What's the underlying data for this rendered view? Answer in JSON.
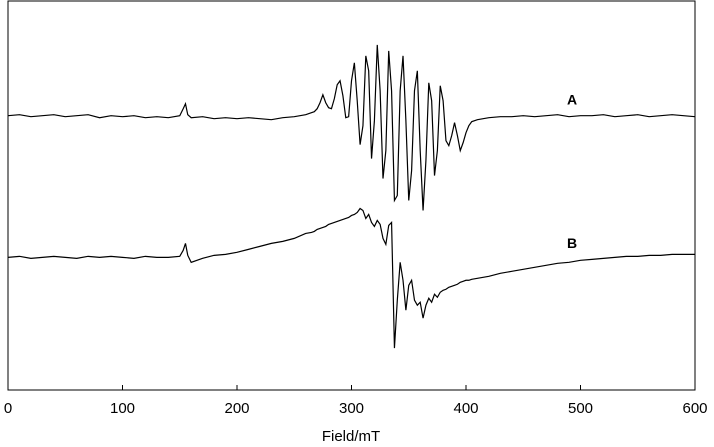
{
  "chart_data": {
    "type": "line",
    "x_label": "Field/mT",
    "x": [
      0,
      10,
      20,
      30,
      40,
      50,
      60,
      70,
      80,
      90,
      100,
      110,
      120,
      130,
      140,
      150,
      153,
      155,
      157,
      160,
      170,
      180,
      190,
      200,
      210,
      220,
      230,
      240,
      250,
      260,
      265,
      267.5,
      270,
      272.5,
      275,
      277.5,
      280,
      282.5,
      285,
      287.5,
      290,
      292.5,
      295,
      297.5,
      300,
      302.5,
      305,
      307.5,
      310,
      312.5,
      315,
      317.5,
      320,
      322.5,
      325,
      327.5,
      330,
      332.5,
      335,
      337.5,
      340,
      342.5,
      345,
      347.5,
      350,
      352.5,
      355,
      357.5,
      360,
      362.5,
      365,
      367.5,
      370,
      372.5,
      375,
      377.5,
      380,
      382.5,
      385,
      387.5,
      390,
      392.5,
      395,
      397.5,
      400,
      402.5,
      405,
      410,
      420,
      430,
      440,
      450,
      460,
      470,
      480,
      490,
      500,
      510,
      520,
      530,
      540,
      550,
      560,
      570,
      580,
      590,
      600
    ],
    "series": [
      {
        "name": "A",
        "color": "#000000",
        "values": [
          27.5,
          27.6,
          27.4,
          27.5,
          27.6,
          27.4,
          27.5,
          27.6,
          27.3,
          27.5,
          27.4,
          27.5,
          27.3,
          27.4,
          27.3,
          27.5,
          28.2,
          28.7,
          27.6,
          27.3,
          27.4,
          27.2,
          27.3,
          27.2,
          27.3,
          27.2,
          27.1,
          27.3,
          27.4,
          27.6,
          27.8,
          27.9,
          28.2,
          28.8,
          29.6,
          28.8,
          28.3,
          28.2,
          29.2,
          30.6,
          31,
          29.5,
          27.3,
          27.4,
          31,
          32.8,
          29,
          24.6,
          26.5,
          33.5,
          32,
          23.2,
          27,
          34.6,
          30,
          21.2,
          24,
          34,
          30,
          19,
          19.5,
          30,
          33.5,
          27,
          19,
          22,
          30,
          32,
          24,
          18,
          23,
          30.8,
          29,
          21.5,
          24,
          30.5,
          29,
          25,
          24.5,
          25.5,
          26.8,
          25.5,
          24,
          24.8,
          25.8,
          26.5,
          26.9,
          27.1,
          27.3,
          27.4,
          27.4,
          27.5,
          27.4,
          27.5,
          27.6,
          27.4,
          27.5,
          27.5,
          27.6,
          27.4,
          27.5,
          27.6,
          27.4,
          27.5,
          27.6,
          27.5,
          27.4
        ]
      },
      {
        "name": "B",
        "color": "#000000",
        "values": [
          13.3,
          13.4,
          13.2,
          13.3,
          13.4,
          13.3,
          13.2,
          13.4,
          13.3,
          13.4,
          13.3,
          13.2,
          13.4,
          13.3,
          13.3,
          13.4,
          14.0,
          14.7,
          13.5,
          12.8,
          13.2,
          13.5,
          13.6,
          13.8,
          14.1,
          14.4,
          14.7,
          14.9,
          15.2,
          15.7,
          15.8,
          15.9,
          16.1,
          16.2,
          16.3,
          16.4,
          16.6,
          16.7,
          16.8,
          16.9,
          17.0,
          17.1,
          17.2,
          17.3,
          17.5,
          17.6,
          17.8,
          18.2,
          18.0,
          17.2,
          17.6,
          16.8,
          16.4,
          17.0,
          16.6,
          15.2,
          14.6,
          16.5,
          16.8,
          4.2,
          9,
          12.8,
          11,
          8,
          10.5,
          11,
          9,
          8.5,
          8.8,
          7.2,
          8.5,
          9.2,
          8.8,
          9.6,
          9.3,
          9.8,
          10,
          10.1,
          10.3,
          10.4,
          10.5,
          10.6,
          10.8,
          10.9,
          11,
          11.0,
          11.1,
          11.2,
          11.4,
          11.7,
          11.9,
          12.1,
          12.3,
          12.5,
          12.7,
          12.8,
          13.0,
          13.1,
          13.2,
          13.3,
          13.4,
          13.4,
          13.5,
          13.5,
          13.6,
          13.6,
          13.6
        ]
      }
    ],
    "xlim": [
      0,
      600
    ],
    "xticks": [
      0,
      100,
      200,
      300,
      400,
      500,
      600
    ],
    "ylim": [
      0,
      39
    ]
  }
}
